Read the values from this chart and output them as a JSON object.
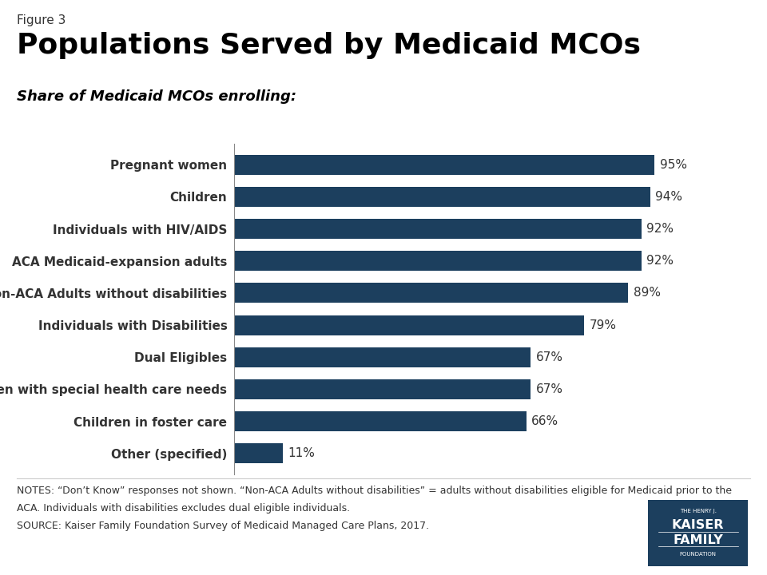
{
  "figure_label": "Figure 3",
  "title": "Populations Served by Medicaid MCOs",
  "subtitle": "Share of Medicaid MCOs enrolling:",
  "categories": [
    "Other (specified)",
    "Children in foster care",
    "Children with special health care needs",
    "Dual Eligibles",
    "Individuals with Disabilities",
    "Non-ACA Adults without disabilities",
    "ACA Medicaid-expansion adults",
    "Individuals with HIV/AIDS",
    "Children",
    "Pregnant women"
  ],
  "values": [
    11,
    66,
    67,
    67,
    79,
    89,
    92,
    92,
    94,
    95
  ],
  "bar_color": "#1c3f5e",
  "label_color": "#333333",
  "background_color": "#ffffff",
  "notes_line1": "NOTES: “Don’t Know” responses not shown. “Non-ACA Adults without disabilities” = adults without disabilities eligible for Medicaid prior to the",
  "notes_line2": "ACA. Individuals with disabilities excludes dual eligible individuals.",
  "notes_line3": "SOURCE: Kaiser Family Foundation Survey of Medicaid Managed Care Plans, 2017.",
  "title_fontsize": 26,
  "subtitle_fontsize": 13,
  "bar_label_fontsize": 11,
  "notes_fontsize": 9,
  "figure_label_fontsize": 11,
  "category_fontsize": 11,
  "xlim": [
    0,
    110
  ],
  "logo_color": "#1c3f5e"
}
